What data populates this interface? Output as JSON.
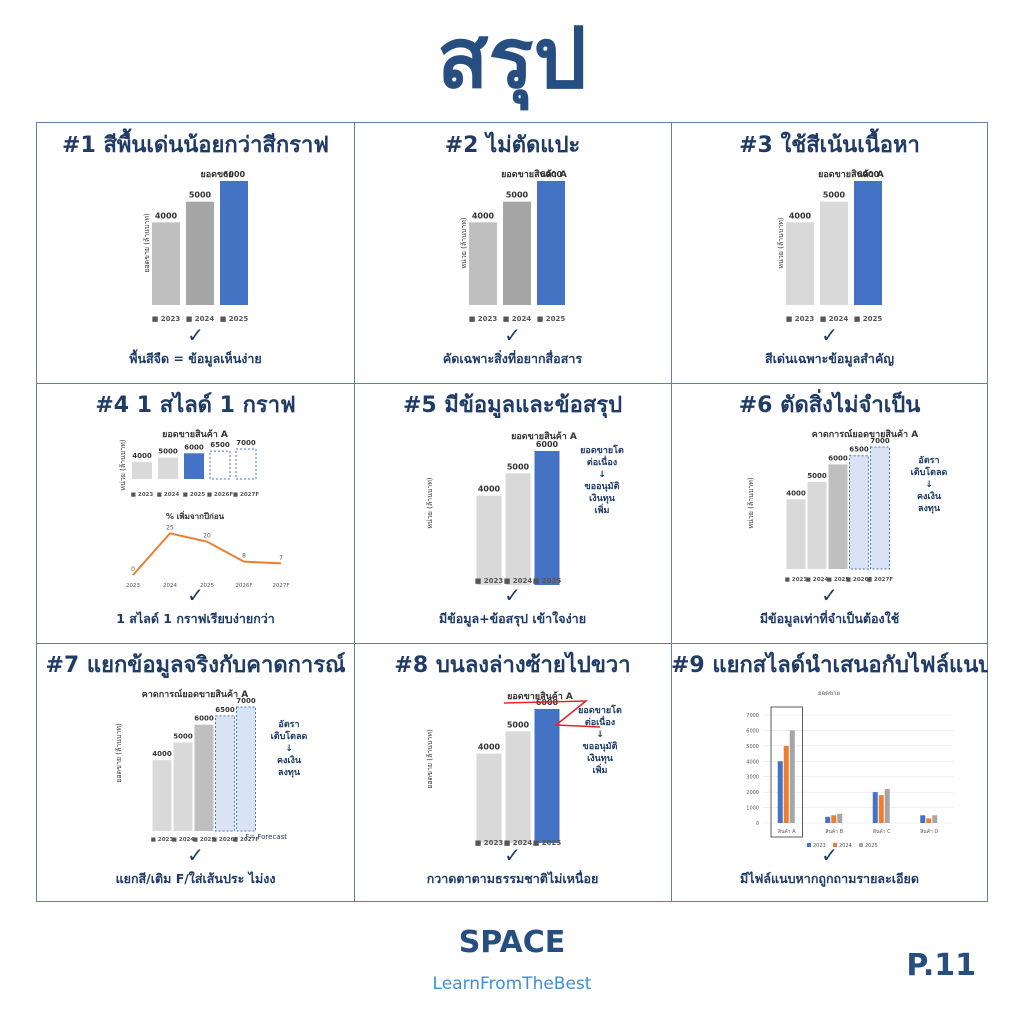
{
  "page": {
    "title": "สรุป",
    "logo_text": "SPACE",
    "tagline": "LearnFromTheBest",
    "page_number": "P.11",
    "check_mark": "✓"
  },
  "colors": {
    "title_blue": "#264e80",
    "highlight_bar": "#4472c4",
    "gray_dark": "#a6a6a6",
    "gray_mid": "#bfbfbf",
    "gray_light": "#d9d9d9",
    "forecast_fill": "#dae3f3",
    "line_orange": "#ed7d31",
    "tagline_blue": "#3d8fd6"
  },
  "cells": [
    {
      "title": "#1 สีพื้นเด่นน้อยกว่าสีกราฟ",
      "caption": "พื้นสีจืด = ข้อมูลเห็นง่าย"
    },
    {
      "title": "#2 ไม่ตัดแปะ",
      "caption": "คัดเฉพาะสิ่งที่อยากสื่อสาร"
    },
    {
      "title": "#3 ใช้สีเน้นเนื้อหา",
      "caption": "สีเด่นเฉพาะข้อมูลสำคัญ"
    },
    {
      "title": "#4 1 สไลด์ 1 กราฟ",
      "caption": "1 สไลด์ 1 กราฟเรียบง่ายกว่า"
    },
    {
      "title": "#5 มีข้อมูลและข้อสรุป",
      "caption": "มีข้อมูล+ข้อสรุป เข้าใจง่าย"
    },
    {
      "title": "#6 ตัดสิ่งไม่จำเป็น",
      "caption": "มีข้อมูลเท่าที่จำเป็นต้องใช้"
    },
    {
      "title": "#7 แยกข้อมูลจริงกับคาดการณ์",
      "caption": "แยกสี/เติม F/ใส่เส้นประ ไม่งง"
    },
    {
      "title": "#8 บนลงล่างซ้ายไปขวา",
      "caption": "กวาดตาตามธรรมชาติไม่เหนื่อย"
    },
    {
      "title": "#9 แยกสไลด์นำเสนอกับไฟล์แนบ",
      "caption": "มีไฟล์แนบหากถูกถามรายละเอียด"
    }
  ],
  "chart_data": [
    {
      "type": "bar",
      "panel": 1,
      "title": "ยอดขาย",
      "ylabel": "ยอดขาย (ล้านบาท)",
      "categories": [
        "2023",
        "2024",
        "2025"
      ],
      "values": [
        4000,
        5000,
        6000
      ],
      "colors": [
        "#bfbfbf",
        "#a6a6a6",
        "#4472c4"
      ],
      "legend": "bottom"
    },
    {
      "type": "bar",
      "panel": 2,
      "title": "ยอดขายสินค้า A",
      "ylabel": "หน่วย (ล้านบาท)",
      "categories": [
        "2023",
        "2024",
        "2025"
      ],
      "values": [
        4000,
        5000,
        6000
      ],
      "colors": [
        "#bfbfbf",
        "#a6a6a6",
        "#4472c4"
      ],
      "legend": "bottom"
    },
    {
      "type": "bar",
      "panel": 3,
      "title": "ยอดขายสินค้า A",
      "ylabel": "หน่วย (ล้านบาท)",
      "categories": [
        "2023",
        "2024",
        "2025"
      ],
      "values": [
        4000,
        5000,
        6000
      ],
      "colors": [
        "#d9d9d9",
        "#d9d9d9",
        "#4472c4"
      ],
      "legend": "bottom"
    },
    {
      "type": "bar",
      "panel": 4,
      "title": "ยอดขายสินค้า A",
      "ylabel": "หน่วย (ล้านบาท)",
      "categories": [
        "2023",
        "2024",
        "2025",
        "2026F",
        "2027F"
      ],
      "values": [
        4000,
        5000,
        6000,
        6500,
        7000
      ],
      "colors": [
        "#d9d9d9",
        "#d9d9d9",
        "#4472c4",
        "#ffffff",
        "#ffffff"
      ],
      "forecast_from": 3,
      "legend": "bottom"
    },
    {
      "type": "line",
      "panel": 4,
      "title": "% เพิ่มจากปีก่อน",
      "x": [
        "2023",
        "2024",
        "2025",
        "2026F",
        "2027F"
      ],
      "y": [
        0,
        25,
        20,
        8,
        7
      ],
      "color": "#ed7d31"
    },
    {
      "type": "bar",
      "panel": 5,
      "title": "ยอดขายสินค้า A",
      "ylabel": "หน่วย (ล้านบาท)",
      "categories": [
        "2023",
        "2024",
        "2025"
      ],
      "values": [
        4000,
        5000,
        6000
      ],
      "colors": [
        "#d9d9d9",
        "#d9d9d9",
        "#4472c4"
      ],
      "legend": "bottom",
      "annotation": [
        "ยอดขายโต",
        "ต่อเนื่อง",
        "↓",
        "ขออนุมัติ",
        "เงินทุน",
        "เพิ่ม"
      ]
    },
    {
      "type": "bar",
      "panel": 6,
      "title": "คาดการณ์ยอดขายสินค้า A",
      "ylabel": "หน่วย (ล้านบาท)",
      "categories": [
        "2023",
        "2024",
        "2025",
        "2026F",
        "2027F"
      ],
      "values": [
        4000,
        5000,
        6000,
        6500,
        7000
      ],
      "colors": [
        "#d9d9d9",
        "#d9d9d9",
        "#bfbfbf",
        "#dae3f3",
        "#dae3f3"
      ],
      "forecast_from": 3,
      "legend": "bottom",
      "annotation": [
        "อัตรา",
        "เติบโตลด",
        "↓",
        "คงเงิน",
        "ลงทุน"
      ]
    },
    {
      "type": "bar",
      "panel": 7,
      "title": "คาดการณ์ยอดขายสินค้า A",
      "ylabel": "ยอดขาย (ล้านบาท)",
      "categories": [
        "2023",
        "2024",
        "2025",
        "2026F",
        "2027F"
      ],
      "values": [
        4000,
        5000,
        6000,
        6500,
        7000
      ],
      "colors": [
        "#d9d9d9",
        "#d9d9d9",
        "#bfbfbf",
        "#dae3f3",
        "#dae3f3"
      ],
      "forecast_from": 3,
      "legend": "bottom",
      "annotation": [
        "อัตรา",
        "เติบโตลด",
        "↓",
        "คงเงิน",
        "ลงทุน"
      ],
      "note": "F= Forecast"
    },
    {
      "type": "bar",
      "panel": 8,
      "title": "ยอดขายสินค้า A",
      "ylabel": "ยอดขาย (ล้านบาท)",
      "categories": [
        "2023",
        "2024",
        "2025"
      ],
      "values": [
        4000,
        5000,
        6000
      ],
      "colors": [
        "#d9d9d9",
        "#d9d9d9",
        "#4472c4"
      ],
      "legend": "bottom",
      "annotation": [
        "ยอดขายโต",
        "ต่อเนื่อง",
        "↓",
        "ขออนุมัติ",
        "เงินทุน",
        "เพิ่ม"
      ]
    },
    {
      "type": "bar",
      "panel": 9,
      "title": "ยอดขาย",
      "categories": [
        "สินค้า A",
        "สินค้า B",
        "สินค้า C",
        "สินค้า D"
      ],
      "series": [
        {
          "name": "2023",
          "values": [
            4000,
            400,
            2000,
            500
          ]
        },
        {
          "name": "2024",
          "values": [
            5000,
            500,
            1800,
            300
          ]
        },
        {
          "name": "2025",
          "values": [
            6000,
            600,
            2200,
            500
          ]
        }
      ],
      "series_colors": [
        "#4472c4",
        "#ed7d31",
        "#a5a5a5"
      ],
      "ylim": [
        0,
        7000
      ],
      "yticks": [
        0,
        1000,
        2000,
        3000,
        4000,
        5000,
        6000,
        7000
      ],
      "legend": "bottom"
    }
  ]
}
